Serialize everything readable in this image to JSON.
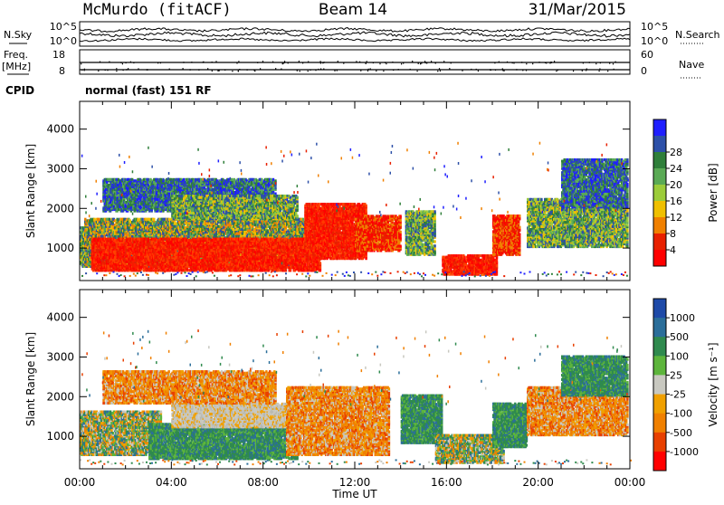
{
  "header": {
    "station": "McMurdo (fitACF)",
    "beam": "Beam 14",
    "date": "31/Mar/2015"
  },
  "aux_labels": {
    "nsky": "N.Sky",
    "nsearch": "N.Search",
    "freq": "Freq.",
    "mhz": "[MHz]",
    "cpid": "CPID",
    "nave": "Nave",
    "cpid_text": "normal (fast) 151 RF",
    "noise_hi_left": "10^5",
    "noise_lo_left": "10^0",
    "noise_hi_right": "10^5",
    "noise_lo_right": "10^0",
    "freq_hi": "18",
    "freq_lo": "8",
    "nave_hi": "60",
    "nave_lo": "0"
  },
  "chart_data": [
    {
      "type": "heatmap",
      "title": "",
      "xlabel": "Time UT",
      "ylabel": "Slant Range [km]",
      "x_ticks": [
        "00:00",
        "04:00",
        "08:00",
        "12:00",
        "16:00",
        "20:00",
        "00:00"
      ],
      "x_range_hours": [
        0,
        24
      ],
      "y_ticks": [
        1000,
        2000,
        3000,
        4000
      ],
      "ylim": [
        180,
        4700
      ],
      "colorbar": {
        "label": "Power [dB]",
        "ticks": [
          "4",
          "8",
          "12",
          "16",
          "20",
          "24",
          "28"
        ],
        "colors": [
          "#1f1fff",
          "#2d50a8",
          "#2f7f3a",
          "#5aaa55",
          "#9ccc3a",
          "#f0c000",
          "#f08000",
          "#e82000",
          "#ff0000"
        ]
      }
    },
    {
      "type": "heatmap",
      "title": "",
      "xlabel": "Time UT",
      "ylabel": "Slant Range [km]",
      "x_ticks": [
        "00:00",
        "04:00",
        "08:00",
        "12:00",
        "16:00",
        "20:00",
        "00:00"
      ],
      "x_range_hours": [
        0,
        24
      ],
      "y_ticks": [
        1000,
        2000,
        3000,
        4000
      ],
      "ylim": [
        180,
        4700
      ],
      "colorbar": {
        "label": "Velocity [m s⁻¹]",
        "ticks": [
          "1000",
          "500",
          "100",
          "25",
          "-25",
          "-100",
          "-500",
          "-1000"
        ],
        "colors": [
          "#1e4aa8",
          "#2b6e9a",
          "#2f8a4e",
          "#5db53c",
          "#c8c8c0",
          "#f0a000",
          "#f08000",
          "#e84000",
          "#ff0000"
        ]
      }
    }
  ],
  "scatter_regions": {
    "power": [
      {
        "t0": 0.0,
        "t1": 0.7,
        "r0": 500,
        "r1": 1500,
        "lvl": "mid"
      },
      {
        "t0": 0.2,
        "t1": 9.8,
        "r0": 500,
        "r1": 1700,
        "lvl": "ring"
      },
      {
        "t0": 0.5,
        "t1": 10.5,
        "r0": 400,
        "r1": 1200,
        "lvl": "core"
      },
      {
        "t0": 1.0,
        "t1": 8.5,
        "r0": 1900,
        "r1": 2700,
        "lvl": "weak"
      },
      {
        "t0": 4.0,
        "t1": 9.5,
        "r0": 1700,
        "r1": 2300,
        "lvl": "mid"
      },
      {
        "t0": 9.8,
        "t1": 12.5,
        "r0": 700,
        "r1": 2100,
        "lvl": "core"
      },
      {
        "t0": 12.0,
        "t1": 14.0,
        "r0": 900,
        "r1": 1800,
        "lvl": "hot"
      },
      {
        "t0": 14.2,
        "t1": 15.5,
        "r0": 800,
        "r1": 1900,
        "lvl": "mid"
      },
      {
        "t0": 15.8,
        "t1": 18.2,
        "r0": 300,
        "r1": 800,
        "lvl": "core"
      },
      {
        "t0": 18.0,
        "t1": 19.2,
        "r0": 800,
        "r1": 1800,
        "lvl": "hot"
      },
      {
        "t0": 19.5,
        "t1": 23.9,
        "r0": 1000,
        "r1": 2200,
        "lvl": "mid"
      },
      {
        "t0": 21.0,
        "t1": 23.9,
        "r0": 2000,
        "r1": 3200,
        "lvl": "weak"
      }
    ],
    "velocity": [
      {
        "t0": 0.0,
        "t1": 3.5,
        "r0": 500,
        "r1": 1600,
        "lvl": "mix"
      },
      {
        "t0": 3.0,
        "t1": 9.5,
        "r0": 400,
        "r1": 1300,
        "lvl": "grn"
      },
      {
        "t0": 4.0,
        "t1": 9.5,
        "r0": 1200,
        "r1": 1800,
        "lvl": "grey"
      },
      {
        "t0": 1.0,
        "t1": 8.5,
        "r0": 1800,
        "r1": 2600,
        "lvl": "org"
      },
      {
        "t0": 9.0,
        "t1": 13.5,
        "r0": 500,
        "r1": 2200,
        "lvl": "org"
      },
      {
        "t0": 14.0,
        "t1": 15.8,
        "r0": 800,
        "r1": 2000,
        "lvl": "grn"
      },
      {
        "t0": 15.5,
        "t1": 18.5,
        "r0": 300,
        "r1": 1000,
        "lvl": "mix"
      },
      {
        "t0": 18.0,
        "t1": 19.5,
        "r0": 700,
        "r1": 1800,
        "lvl": "grn"
      },
      {
        "t0": 19.5,
        "t1": 23.9,
        "r0": 1000,
        "r1": 2200,
        "lvl": "org"
      },
      {
        "t0": 21.0,
        "t1": 23.9,
        "r0": 2000,
        "r1": 3000,
        "lvl": "grn"
      }
    ]
  }
}
